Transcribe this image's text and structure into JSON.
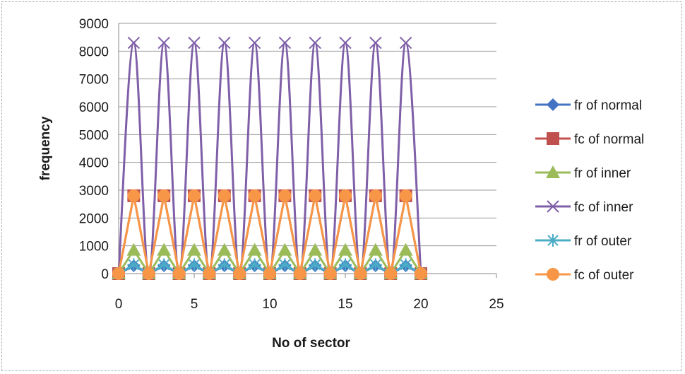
{
  "chart_data": {
    "type": "line",
    "title": "",
    "xlabel": "No of sector",
    "ylabel": "frequency",
    "xlim": [
      0,
      25
    ],
    "ylim": [
      0,
      9000
    ],
    "x_ticks": [
      0,
      5,
      10,
      15,
      20,
      25
    ],
    "y_ticks": [
      0,
      1000,
      2000,
      3000,
      4000,
      5000,
      6000,
      7000,
      8000,
      9000
    ],
    "grid": "horizontal",
    "legend_position": "right",
    "x": [
      0,
      1,
      2,
      3,
      4,
      5,
      6,
      7,
      8,
      9,
      10,
      11,
      12,
      13,
      14,
      15,
      16,
      17,
      18,
      19,
      20
    ],
    "series": [
      {
        "name": "fr of normal",
        "color": "#4472C4",
        "marker": "diamond",
        "values": [
          0,
          280,
          0,
          280,
          0,
          280,
          0,
          280,
          0,
          280,
          0,
          280,
          0,
          280,
          0,
          280,
          0,
          280,
          0,
          280,
          0
        ]
      },
      {
        "name": "fc of normal",
        "color": "#C0504D",
        "marker": "square",
        "values": [
          0,
          2800,
          0,
          2800,
          0,
          2800,
          0,
          2800,
          0,
          2800,
          0,
          2800,
          0,
          2800,
          0,
          2800,
          0,
          2800,
          0,
          2800,
          0
        ]
      },
      {
        "name": "fr of inner",
        "color": "#9BBB59",
        "marker": "triangle",
        "values": [
          0,
          850,
          0,
          850,
          0,
          850,
          0,
          850,
          0,
          850,
          0,
          850,
          0,
          850,
          0,
          850,
          0,
          850,
          0,
          850,
          0
        ]
      },
      {
        "name": "fc of inner",
        "color": "#7F5FA8",
        "marker": "x",
        "values": [
          0,
          8300,
          0,
          8300,
          0,
          8300,
          0,
          8300,
          0,
          8300,
          0,
          8300,
          0,
          8300,
          0,
          8300,
          0,
          8300,
          0,
          8300,
          0
        ]
      },
      {
        "name": "fr of outer",
        "color": "#4BACC6",
        "marker": "star",
        "values": [
          0,
          320,
          0,
          320,
          0,
          320,
          0,
          320,
          0,
          320,
          0,
          320,
          0,
          320,
          0,
          320,
          0,
          320,
          0,
          320,
          0
        ]
      },
      {
        "name": "fc of outer",
        "color": "#F79646",
        "marker": "circle",
        "values": [
          0,
          2800,
          0,
          2800,
          0,
          2800,
          0,
          2800,
          0,
          2800,
          0,
          2800,
          0,
          2800,
          0,
          2800,
          0,
          2800,
          0,
          2800,
          0
        ]
      }
    ]
  }
}
